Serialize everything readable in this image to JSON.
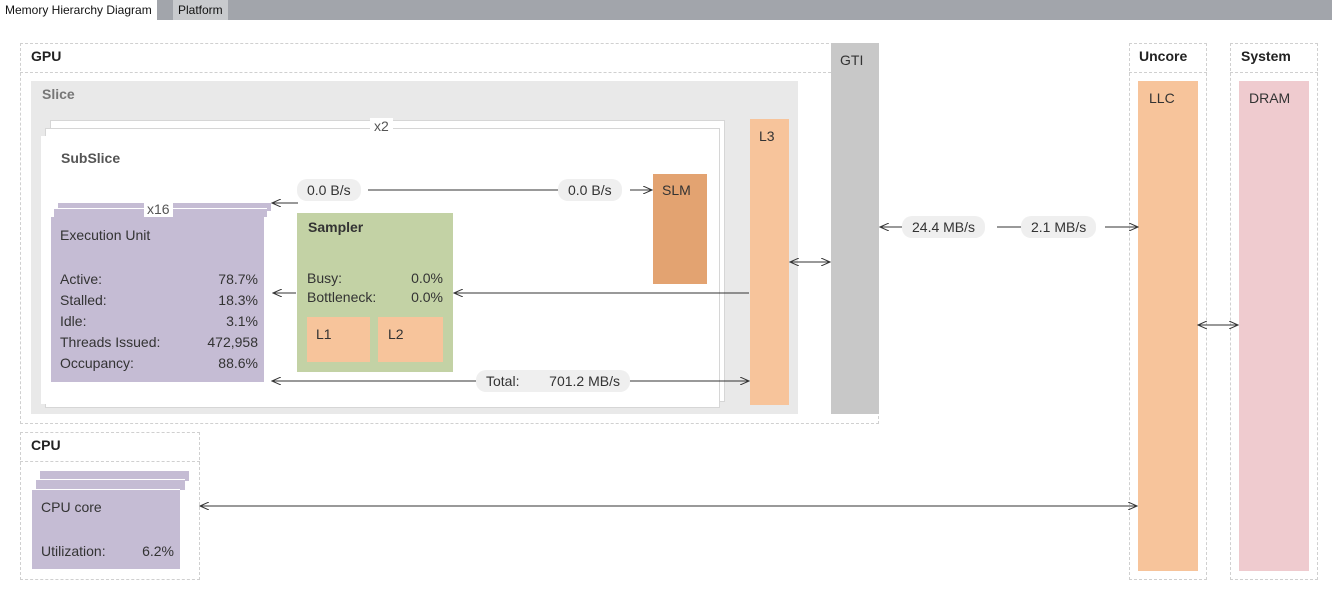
{
  "tabs": [
    {
      "label": "Memory Hierarchy Diagram",
      "active": true
    },
    {
      "label": "Platform",
      "active": false
    }
  ],
  "gpu": {
    "title": "GPU",
    "slice": {
      "title": "Slice",
      "multiplier": "x2",
      "subslice": {
        "title": "SubSlice",
        "eu": {
          "multiplier": "x16",
          "title": "Execution Unit",
          "metrics": [
            {
              "label": "Active:",
              "value": "78.7%"
            },
            {
              "label": "Stalled:",
              "value": "18.3%"
            },
            {
              "label": "Idle:",
              "value": "3.1%"
            },
            {
              "label": "Threads Issued:",
              "value": "472,958"
            },
            {
              "label": "Occupancy:",
              "value": "88.6%"
            }
          ]
        },
        "sampler": {
          "title": "Sampler",
          "metrics": [
            {
              "label": "Busy:",
              "value": "0.0%"
            },
            {
              "label": "Bottleneck:",
              "value": "0.0%"
            }
          ],
          "l1": "L1",
          "l2": "L2"
        },
        "slm": "SLM",
        "slm_read": "0.0 B/s",
        "slm_write": "0.0 B/s",
        "total_label": "Total:",
        "total_value": "701.2 MB/s"
      },
      "l3": "L3"
    },
    "gti": "GTI",
    "gti_to_llc_read": "24.4 MB/s",
    "gti_to_llc_write": "2.1 MB/s"
  },
  "uncore": {
    "title": "Uncore",
    "llc": "LLC"
  },
  "system": {
    "title": "System",
    "dram": "DRAM"
  },
  "cpu": {
    "title": "CPU",
    "core": {
      "title": "CPU core",
      "utilization_label": "Utilization:",
      "utilization_value": "6.2%"
    }
  },
  "colors": {
    "eu": "#c5bcd4",
    "sampler": "#c3d2a5",
    "cache": "#f7c49b",
    "slm": "#e3a371",
    "dram": "#efcbcf",
    "gti": "#c8c8c8",
    "slice_bg": "#e9e9e9"
  }
}
